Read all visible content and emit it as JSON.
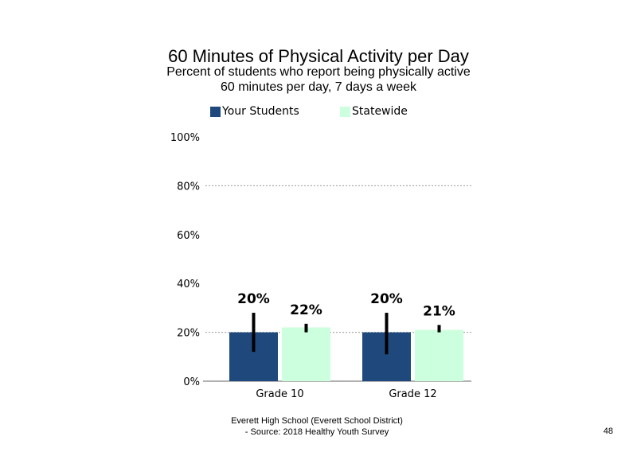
{
  "chart_data": {
    "type": "bar",
    "title": "60 Minutes of Physical Activity per Day",
    "subtitle_lines": [
      "Percent of students who report being physically active",
      "60 minutes per day, 7 days a week"
    ],
    "categories": [
      "Grade 10",
      "Grade 12"
    ],
    "series": [
      {
        "name": "Your Students",
        "color": "#1f497d",
        "values": [
          20,
          20
        ],
        "labels": [
          "20%",
          "20%"
        ],
        "error_low": [
          12,
          11
        ],
        "error_high": [
          28,
          28
        ]
      },
      {
        "name": "Statewide",
        "color": "#ccffdd",
        "values": [
          22,
          21
        ],
        "labels": [
          "22%",
          "21%"
        ],
        "error_low": [
          20,
          20
        ],
        "error_high": [
          23.5,
          23
        ]
      }
    ],
    "ylim": [
      0,
      100
    ],
    "yticks": [
      0,
      20,
      40,
      60,
      80,
      100
    ],
    "ytick_labels": [
      "0%",
      "20%",
      "40%",
      "60%",
      "80%",
      "100%"
    ],
    "gridlines": [
      20,
      80
    ],
    "legend_position": "top"
  },
  "footer": {
    "line1": "Everett High School (Everett School District)",
    "line2": "- Source: 2018 Healthy Youth Survey",
    "page_number": "48"
  }
}
